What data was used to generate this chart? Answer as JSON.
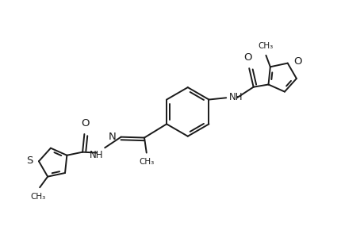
{
  "background_color": "#ffffff",
  "line_color": "#1a1a1a",
  "line_width": 1.4,
  "figsize": [
    4.6,
    3.0
  ],
  "dpi": 100,
  "xlim": [
    0,
    10
  ],
  "ylim": [
    0,
    6.5
  ]
}
